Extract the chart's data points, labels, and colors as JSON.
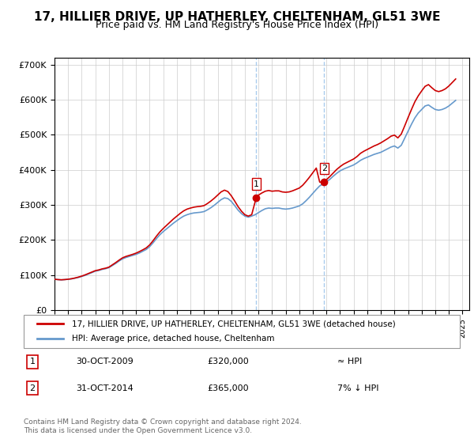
{
  "title": "17, HILLIER DRIVE, UP HATHERLEY, CHELTENHAM, GL51 3WE",
  "subtitle": "Price paid vs. HM Land Registry's House Price Index (HPI)",
  "title_fontsize": 11,
  "subtitle_fontsize": 9,
  "ylabel_ticks": [
    "£0",
    "£100K",
    "£200K",
    "£300K",
    "£400K",
    "£500K",
    "£600K",
    "£700K"
  ],
  "ytick_values": [
    0,
    100000,
    200000,
    300000,
    400000,
    500000,
    600000,
    700000
  ],
  "ylim": [
    0,
    720000
  ],
  "xlim_start": 1995.0,
  "xlim_end": 2025.5,
  "red_line_color": "#cc0000",
  "blue_line_color": "#6699cc",
  "background_color": "#ffffff",
  "grid_color": "#cccccc",
  "sale1_x": 2009.83,
  "sale1_y": 320000,
  "sale1_label": "1",
  "sale2_x": 2014.83,
  "sale2_y": 365000,
  "sale2_label": "2",
  "vline_color": "#aaccee",
  "marker_color": "#cc0000",
  "legend_line1": "17, HILLIER DRIVE, UP HATHERLEY, CHELTENHAM, GL51 3WE (detached house)",
  "legend_line2": "HPI: Average price, detached house, Cheltenham",
  "annotation1_date": "30-OCT-2009",
  "annotation1_price": "£320,000",
  "annotation1_hpi": "≈ HPI",
  "annotation2_date": "31-OCT-2014",
  "annotation2_price": "£365,000",
  "annotation2_hpi": "7% ↓ HPI",
  "footer": "Contains HM Land Registry data © Crown copyright and database right 2024.\nThis data is licensed under the Open Government Licence v3.0.",
  "hpi_data": {
    "years": [
      1995.0,
      1995.25,
      1995.5,
      1995.75,
      1996.0,
      1996.25,
      1996.5,
      1996.75,
      1997.0,
      1997.25,
      1997.5,
      1997.75,
      1998.0,
      1998.25,
      1998.5,
      1998.75,
      1999.0,
      1999.25,
      1999.5,
      1999.75,
      2000.0,
      2000.25,
      2000.5,
      2000.75,
      2001.0,
      2001.25,
      2001.5,
      2001.75,
      2002.0,
      2002.25,
      2002.5,
      2002.75,
      2003.0,
      2003.25,
      2003.5,
      2003.75,
      2004.0,
      2004.25,
      2004.5,
      2004.75,
      2005.0,
      2005.25,
      2005.5,
      2005.75,
      2006.0,
      2006.25,
      2006.5,
      2006.75,
      2007.0,
      2007.25,
      2007.5,
      2007.75,
      2008.0,
      2008.25,
      2008.5,
      2008.75,
      2009.0,
      2009.25,
      2009.5,
      2009.75,
      2010.0,
      2010.25,
      2010.5,
      2010.75,
      2011.0,
      2011.25,
      2011.5,
      2011.75,
      2012.0,
      2012.25,
      2012.5,
      2012.75,
      2013.0,
      2013.25,
      2013.5,
      2013.75,
      2014.0,
      2014.25,
      2014.5,
      2014.75,
      2015.0,
      2015.25,
      2015.5,
      2015.75,
      2016.0,
      2016.25,
      2016.5,
      2016.75,
      2017.0,
      2017.25,
      2017.5,
      2017.75,
      2018.0,
      2018.25,
      2018.5,
      2018.75,
      2019.0,
      2019.25,
      2019.5,
      2019.75,
      2020.0,
      2020.25,
      2020.5,
      2020.75,
      2021.0,
      2021.25,
      2021.5,
      2021.75,
      2022.0,
      2022.25,
      2022.5,
      2022.75,
      2023.0,
      2023.25,
      2023.5,
      2023.75,
      2024.0,
      2024.25,
      2024.5
    ],
    "values": [
      88000,
      87000,
      86000,
      87000,
      88000,
      89000,
      91000,
      93000,
      96000,
      99000,
      103000,
      107000,
      111000,
      113000,
      116000,
      118000,
      121000,
      127000,
      133000,
      140000,
      146000,
      150000,
      153000,
      156000,
      159000,
      163000,
      168000,
      173000,
      181000,
      192000,
      204000,
      215000,
      224000,
      232000,
      240000,
      248000,
      255000,
      262000,
      268000,
      272000,
      275000,
      277000,
      278000,
      279000,
      281000,
      286000,
      292000,
      299000,
      307000,
      315000,
      320000,
      318000,
      310000,
      298000,
      285000,
      275000,
      268000,
      265000,
      268000,
      272000,
      278000,
      284000,
      289000,
      291000,
      290000,
      291000,
      291000,
      289000,
      288000,
      289000,
      291000,
      294000,
      297000,
      303000,
      312000,
      322000,
      333000,
      344000,
      354000,
      360000,
      366000,
      373000,
      382000,
      390000,
      397000,
      402000,
      406000,
      410000,
      414000,
      420000,
      427000,
      432000,
      436000,
      440000,
      444000,
      447000,
      450000,
      455000,
      460000,
      465000,
      468000,
      462000,
      470000,
      490000,
      510000,
      530000,
      548000,
      562000,
      572000,
      582000,
      585000,
      578000,
      572000,
      570000,
      572000,
      576000,
      582000,
      590000,
      598000
    ]
  },
  "property_data": {
    "years": [
      1995.0,
      1995.25,
      1995.5,
      1995.75,
      1996.0,
      1996.25,
      1996.5,
      1996.75,
      1997.0,
      1997.25,
      1997.5,
      1997.75,
      1998.0,
      1998.25,
      1998.5,
      1998.75,
      1999.0,
      1999.25,
      1999.5,
      1999.75,
      2000.0,
      2000.25,
      2000.5,
      2000.75,
      2001.0,
      2001.25,
      2001.5,
      2001.75,
      2002.0,
      2002.25,
      2002.5,
      2002.75,
      2003.0,
      2003.25,
      2003.5,
      2003.75,
      2004.0,
      2004.25,
      2004.5,
      2004.75,
      2005.0,
      2005.25,
      2005.5,
      2005.75,
      2006.0,
      2006.25,
      2006.5,
      2006.75,
      2007.0,
      2007.25,
      2007.5,
      2007.75,
      2008.0,
      2008.25,
      2008.5,
      2008.75,
      2009.0,
      2009.25,
      2009.5,
      2009.83,
      2010.0,
      2010.25,
      2010.5,
      2010.75,
      2011.0,
      2011.25,
      2011.5,
      2011.75,
      2012.0,
      2012.25,
      2012.5,
      2012.75,
      2013.0,
      2013.25,
      2013.5,
      2013.75,
      2014.0,
      2014.25,
      2014.5,
      2014.83,
      2015.0,
      2015.25,
      2015.5,
      2015.75,
      2016.0,
      2016.25,
      2016.5,
      2016.75,
      2017.0,
      2017.25,
      2017.5,
      2017.75,
      2018.0,
      2018.25,
      2018.5,
      2018.75,
      2019.0,
      2019.25,
      2019.5,
      2019.75,
      2020.0,
      2020.25,
      2020.5,
      2020.75,
      2021.0,
      2021.25,
      2021.5,
      2021.75,
      2022.0,
      2022.25,
      2022.5,
      2022.75,
      2023.0,
      2023.25,
      2023.5,
      2023.75,
      2024.0,
      2024.25,
      2024.5
    ],
    "values": [
      88000,
      87000,
      86500,
      87000,
      88000,
      89500,
      91500,
      94000,
      97000,
      100500,
      104500,
      108500,
      112500,
      114500,
      117500,
      119500,
      122500,
      129000,
      135500,
      142500,
      149000,
      153000,
      156000,
      159000,
      162500,
      167000,
      172000,
      177500,
      186000,
      198000,
      211000,
      223000,
      233000,
      242000,
      251000,
      260000,
      268000,
      276000,
      283000,
      288000,
      291000,
      293500,
      295000,
      296000,
      298000,
      304000,
      311000,
      319000,
      328000,
      337000,
      342000,
      338000,
      326000,
      311000,
      295000,
      282000,
      272000,
      268000,
      272000,
      320000,
      328000,
      334000,
      339000,
      341000,
      339000,
      340000,
      340000,
      337000,
      336000,
      337000,
      340000,
      344000,
      348000,
      356000,
      367000,
      379000,
      392000,
      405000,
      365000,
      365000,
      372000,
      381000,
      391000,
      401000,
      409000,
      416000,
      421000,
      426000,
      431000,
      438000,
      447000,
      453000,
      458000,
      463000,
      468000,
      472000,
      477000,
      483000,
      489000,
      496000,
      499000,
      491000,
      502000,
      525000,
      549000,
      572000,
      594000,
      611000,
      625000,
      638000,
      643000,
      634000,
      626000,
      623000,
      626000,
      631000,
      639000,
      649000,
      659000
    ]
  }
}
